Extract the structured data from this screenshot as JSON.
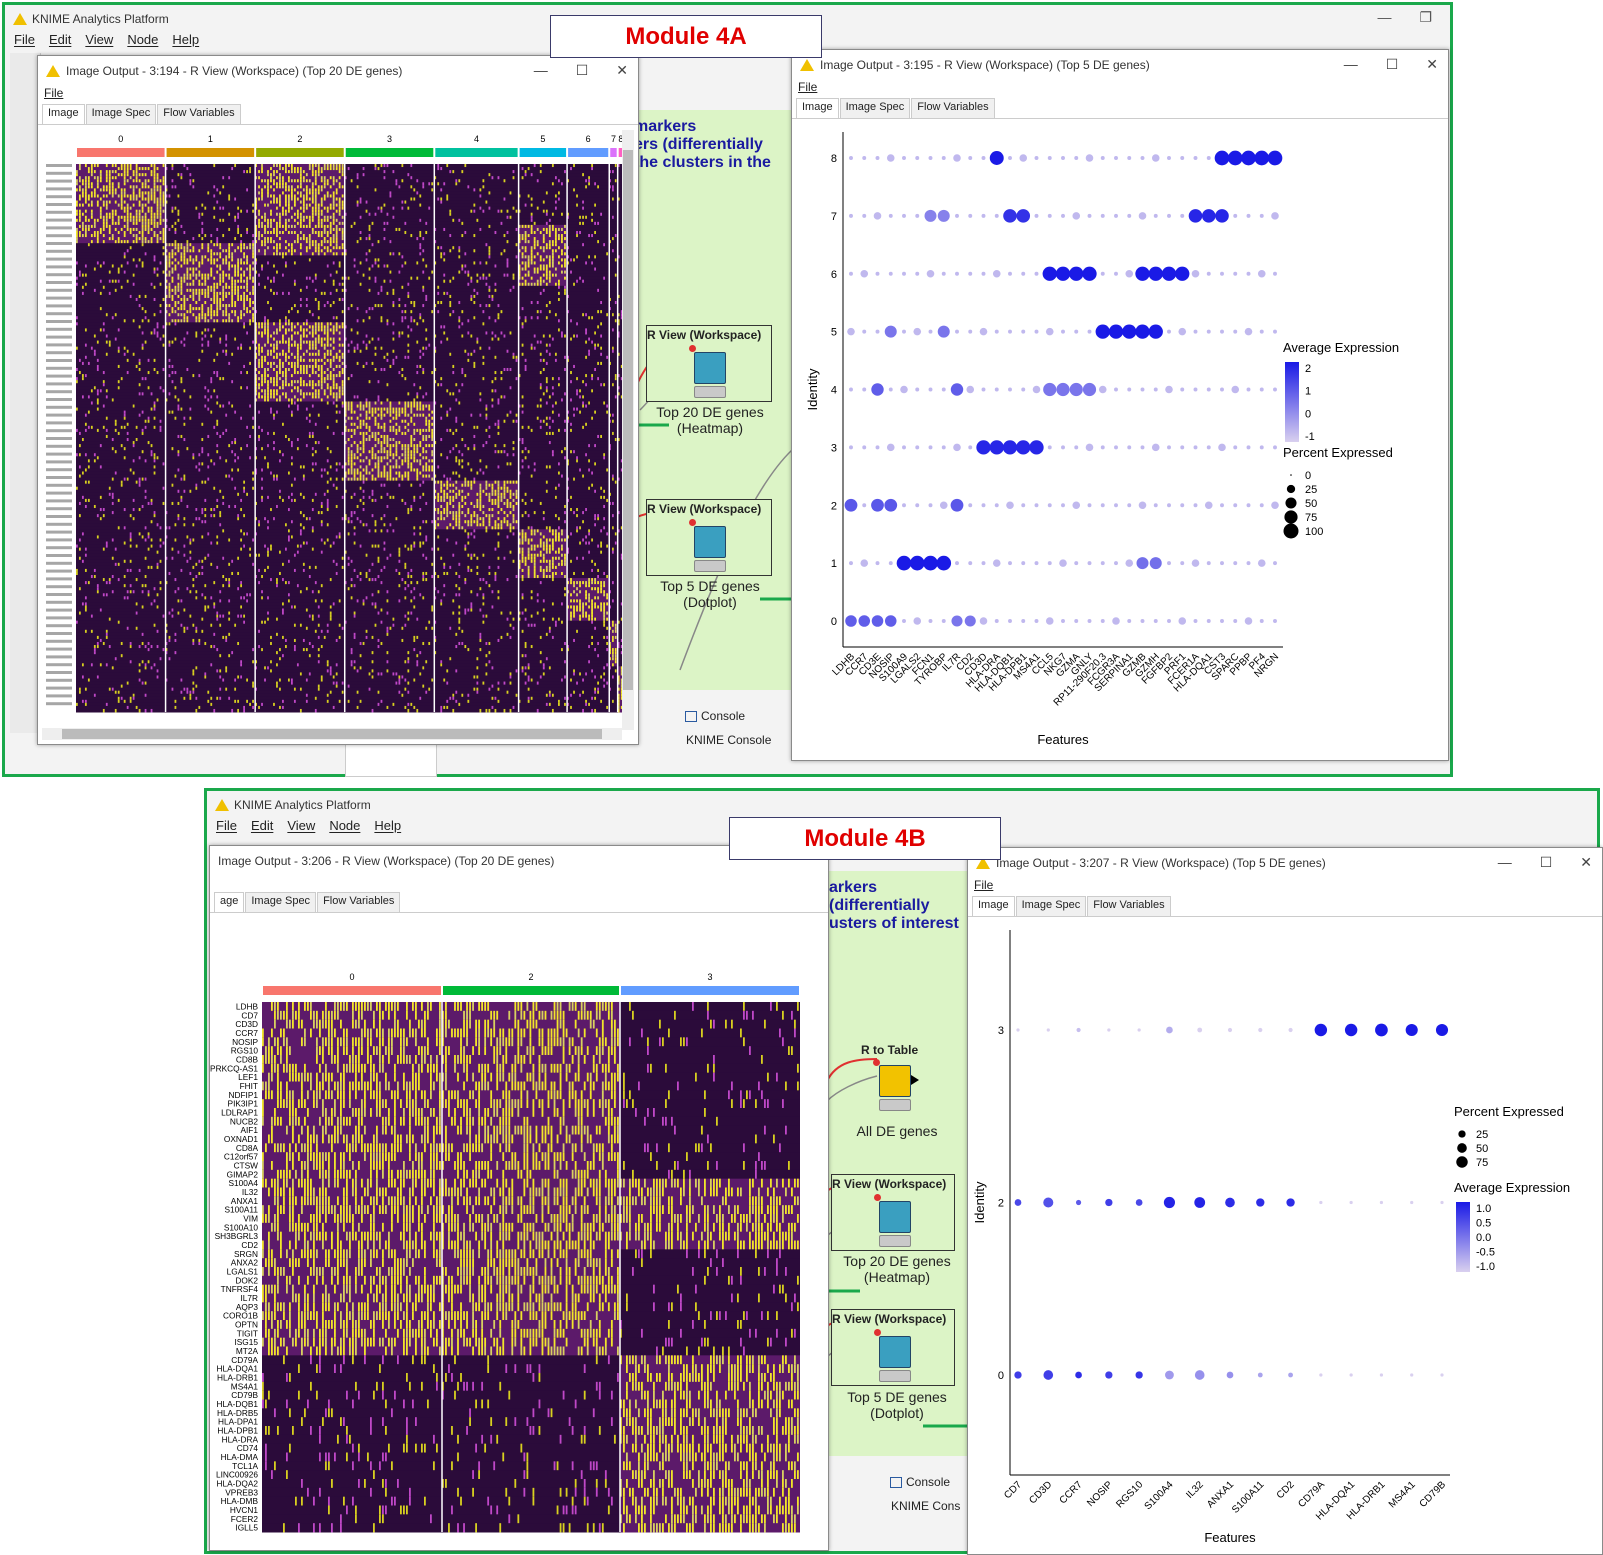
{
  "app": {
    "title": "KNIME Analytics Platform",
    "menu": [
      "File",
      "Edit",
      "View",
      "Node",
      "Help"
    ]
  },
  "module_4a": {
    "label": "Module 4A",
    "heatmap_window": {
      "title": "Image Output - 3:194 - R View (Workspace) (Top 20 DE genes)",
      "menu": "File",
      "tabs": [
        "Image",
        "Image Spec",
        "Flow Variables"
      ],
      "cluster_labels": [
        "0",
        "1",
        "2",
        "3",
        "4",
        "5",
        "6",
        "7",
        "8"
      ],
      "cluster_colors": [
        "#f8766d",
        "#d39200",
        "#93aa00",
        "#00ba38",
        "#00c19f",
        "#00b9e3",
        "#619cff",
        "#db72fb",
        "#ff61c3"
      ]
    },
    "dotplot_window": {
      "title": "Image Output - 3:195 - R View (Workspace) (Top 5 DE genes)",
      "menu": "File",
      "tabs": [
        "Image",
        "Image Spec",
        "Flow Variables"
      ]
    },
    "canvas_note": [
      "markers",
      "ers (differentially",
      "the clusters in the"
    ],
    "nodes": [
      {
        "name": "R View (Workspace)",
        "caption_1": "Top 20 DE genes",
        "caption_2": "(Heatmap)"
      },
      {
        "name": "R View (Workspace)",
        "caption_1": "Top 5 DE genes",
        "caption_2": "(Dotplot)"
      }
    ],
    "console": {
      "tab": "Console",
      "label": "KNIME Console"
    }
  },
  "module_4b": {
    "label": "Module 4B",
    "heatmap_window": {
      "title": "Image Output - 3:206 - R View (Workspace) (Top 20 DE genes)",
      "tabs": [
        "age",
        "Image Spec",
        "Flow Variables"
      ],
      "cluster_labels": [
        "0",
        "2",
        "3"
      ],
      "cluster_colors": [
        "#f8766d",
        "#00ba38",
        "#619cff"
      ],
      "genes": [
        "LDHB",
        "CD7",
        "CD3D",
        "CCR7",
        "NOSIP",
        "RGS10",
        "CD8B",
        "PRKCQ-AS1",
        "LEF1",
        "FHIT",
        "NDFIP1",
        "PIK3IP1",
        "LDLRAP1",
        "NUCB2",
        "AIF1",
        "OXNAD1",
        "CD8A",
        "C12orf57",
        "CTSW",
        "GIMAP2",
        "S100A4",
        "IL32",
        "ANXA1",
        "S100A11",
        "VIM",
        "S100A10",
        "SH3BGRL3",
        "CD2",
        "SRGN",
        "ANXA2",
        "LGALS1",
        "DOK2",
        "TNFRSF4",
        "IL7R",
        "AQP3",
        "CORO1B",
        "OPTN",
        "TIGIT",
        "ISG15",
        "MT2A",
        "CD79A",
        "HLA-DQA1",
        "HLA-DRB1",
        "MS4A1",
        "CD79B",
        "HLA-DQB1",
        "HLA-DRB5",
        "HLA-DPA1",
        "HLA-DPB1",
        "HLA-DRA",
        "CD74",
        "HLA-DMA",
        "TCL1A",
        "LINC00926",
        "HLA-DQA2",
        "VPREB3",
        "HLA-DMB",
        "HVCN1",
        "FCER2",
        "IGLL5"
      ]
    },
    "dotplot_window": {
      "title": "Image Output - 3:207 - R View (Workspace) (Top 5 DE genes)",
      "menu": "File",
      "tabs": [
        "Image",
        "Image Spec",
        "Flow Variables"
      ]
    },
    "canvas_note": [
      "arkers",
      "(differentially",
      "usters of interest"
    ],
    "nodes": [
      {
        "name": "R to Table",
        "caption_1": "All DE genes",
        "caption_2": ""
      },
      {
        "name": "R View (Workspace)",
        "caption_1": "Top 20 DE genes",
        "caption_2": "(Heatmap)"
      },
      {
        "name": "R View (Workspace)",
        "caption_1": "Top 5 DE genes",
        "caption_2": "(Dotplot)"
      }
    ],
    "console": {
      "tab": "Console",
      "label": "KNIME Cons"
    }
  },
  "chart_data": [
    {
      "type": "scatter",
      "subtype": "dotplot",
      "xlabel": "Features",
      "ylabel": "Identity",
      "identities": [
        "0",
        "1",
        "2",
        "3",
        "4",
        "5",
        "6",
        "7",
        "8"
      ],
      "features": [
        "LDHB",
        "CCR7",
        "CD3E",
        "NOSIP",
        "S100A9",
        "LGALS2",
        "FCN1",
        "TYROBP",
        "IL7R",
        "CD2",
        "CD3D",
        "HLA-DRA",
        "HLA-DQB1",
        "HLA-DPB1",
        "MS4A1",
        "CCL5",
        "NKG7",
        "GZMA",
        "GNLY",
        "RP11-290F20.3",
        "FCGR3A",
        "SERPINA1",
        "GZMB",
        "GZMH",
        "FGFBP2",
        "PRF1",
        "FCER1A",
        "HLA-DQA1",
        "CST3",
        "SPARC",
        "PPBP",
        "PF4",
        "NRGN"
      ],
      "legend": {
        "avg_title": "Average Expression",
        "avg_ticks": [
          "2",
          "1",
          "0",
          "-1"
        ],
        "pct_title": "Percent Expressed",
        "pct_ticks": [
          "0",
          "25",
          "50",
          "75",
          "100"
        ],
        "color_low": "#d9d0ef",
        "color_high": "#1a1ae6"
      },
      "highlights": [
        {
          "identity": "8",
          "features": [
            "HLA-DRA"
          ],
          "pct": 85,
          "avg": 2
        },
        {
          "identity": "8",
          "features": [
            "CST3",
            "SPARC",
            "PPBP",
            "PF4",
            "NRGN"
          ],
          "pct": 95,
          "avg": 2
        },
        {
          "identity": "7",
          "features": [
            "FCN1",
            "TYROBP"
          ],
          "pct": 60,
          "avg": 0.3
        },
        {
          "identity": "7",
          "features": [
            "HLA-DQB1",
            "HLA-DPB1"
          ],
          "pct": 80,
          "avg": 1.6
        },
        {
          "identity": "7",
          "features": [
            "FCER1A",
            "HLA-DQA1",
            "CST3"
          ],
          "pct": 80,
          "avg": 1.8
        },
        {
          "identity": "6",
          "features": [
            "CCL5",
            "NKG7",
            "GZMA",
            "GNLY"
          ],
          "pct": 90,
          "avg": 2
        },
        {
          "identity": "6",
          "features": [
            "GZMB",
            "GZMH",
            "FGFBP2",
            "PRF1"
          ],
          "pct": 90,
          "avg": 2
        },
        {
          "identity": "5",
          "features": [
            "TYROBP",
            "NOSIP"
          ],
          "pct": 60,
          "avg": 0.5
        },
        {
          "identity": "5",
          "features": [
            "RP11-290F20.3",
            "FCGR3A",
            "SERPINA1",
            "GZMB",
            "GZMH"
          ],
          "pct": 90,
          "avg": 2
        },
        {
          "identity": "4",
          "features": [
            "CD3E",
            "IL7R"
          ],
          "pct": 65,
          "avg": 0.9
        },
        {
          "identity": "4",
          "features": [
            "CCL5",
            "NKG7",
            "GZMA",
            "GNLY"
          ],
          "pct": 75,
          "avg": 0.5
        },
        {
          "identity": "3",
          "features": [
            "CD3D",
            "HLA-DRA",
            "HLA-DQB1",
            "HLA-DPB1",
            "MS4A1"
          ],
          "pct": 90,
          "avg": 1.8
        },
        {
          "identity": "2",
          "features": [
            "LDHB",
            "CD3E",
            "NOSIP",
            "IL7R"
          ],
          "pct": 70,
          "avg": 1.0
        },
        {
          "identity": "1",
          "features": [
            "S100A9",
            "LGALS2",
            "FCN1",
            "TYROBP"
          ],
          "pct": 95,
          "avg": 2
        },
        {
          "identity": "1",
          "features": [
            "GZMB",
            "GZMH"
          ],
          "pct": 60,
          "avg": 0.6
        },
        {
          "identity": "0",
          "features": [
            "LDHB",
            "CCR7",
            "CD3E",
            "NOSIP"
          ],
          "pct": 55,
          "avg": 0.9
        },
        {
          "identity": "0",
          "features": [
            "IL7R",
            "CD2"
          ],
          "pct": 50,
          "avg": 0.5
        }
      ]
    },
    {
      "type": "scatter",
      "subtype": "dotplot",
      "xlabel": "Features",
      "ylabel": "Identity",
      "identities": [
        "0",
        "2",
        "3"
      ],
      "features": [
        "CD7",
        "CD3D",
        "CCR7",
        "NOSIP",
        "RGS10",
        "S100A4",
        "IL32",
        "ANXA1",
        "S100A11",
        "CD2",
        "CD79A",
        "HLA-DQA1",
        "HLA-DRB1",
        "MS4A1",
        "CD79B"
      ],
      "legend": {
        "pct_title": "Percent Expressed",
        "pct_ticks": [
          "25",
          "50",
          "75"
        ],
        "avg_title": "Average Expression",
        "avg_ticks": [
          "1.0",
          "0.5",
          "0.0",
          "-0.5",
          "-1.0"
        ],
        "color_low": "#d9d0ef",
        "color_high": "#1a1ae6"
      },
      "points": [
        {
          "identity": "3",
          "pct": [
            2,
            2,
            5,
            2,
            2,
            20,
            8,
            5,
            5,
            5,
            90,
            90,
            95,
            85,
            85
          ],
          "avg": [
            -1,
            -1,
            -0.8,
            -1,
            -1,
            -0.6,
            -1,
            -1,
            -1,
            -1,
            1,
            1,
            1,
            1,
            1
          ]
        },
        {
          "identity": "2",
          "pct": [
            20,
            55,
            10,
            25,
            20,
            70,
            65,
            50,
            35,
            35,
            2,
            2,
            2,
            2,
            2
          ],
          "avg": [
            0.5,
            0.4,
            0.3,
            0.6,
            0.5,
            0.9,
            0.9,
            0.8,
            0.8,
            0.8,
            -1,
            -1,
            -1,
            -1,
            -1
          ]
        },
        {
          "identity": "0",
          "pct": [
            25,
            50,
            20,
            25,
            25,
            40,
            50,
            20,
            8,
            8,
            2,
            2,
            2,
            2,
            2
          ],
          "avg": [
            0.6,
            0.6,
            0.8,
            0.6,
            0.7,
            -0.4,
            -0.3,
            -0.3,
            -0.5,
            -0.5,
            -1,
            -1,
            -1,
            -1,
            -1
          ]
        }
      ]
    }
  ]
}
